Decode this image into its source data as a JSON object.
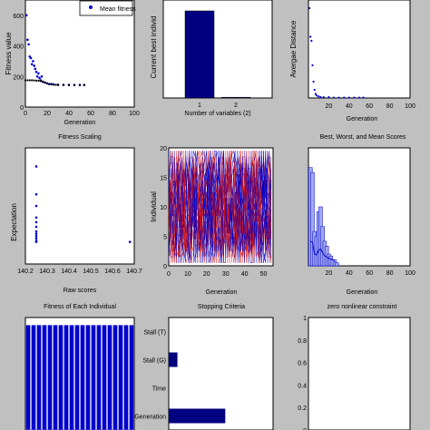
{
  "figure": {
    "background": "#c0c0c0",
    "mark_color": "#0000cc",
    "red_color": "#d01010"
  },
  "chart_data": [
    {
      "id": "p1",
      "type": "scatter",
      "ylabel": "Fitness value",
      "xlabel": "Generation",
      "xlim": [
        0,
        100
      ],
      "ylim": [
        0,
        700
      ],
      "xticks": [
        "0",
        "20",
        "40",
        "60",
        "80",
        "100"
      ],
      "yticks": [
        "0",
        "200",
        "400",
        "600"
      ],
      "legend": {
        "label": "Mean fitness",
        "placement": "top-right"
      },
      "series": [
        {
          "name": "Mean fitness",
          "color": "#0000cc",
          "points": [
            [
              1,
              600
            ],
            [
              2,
              440
            ],
            [
              3,
              410
            ],
            [
              4,
              330
            ],
            [
              5,
              320
            ],
            [
              6,
              280
            ],
            [
              7,
              300
            ],
            [
              8,
              270
            ],
            [
              9,
              250
            ],
            [
              10,
              230
            ],
            [
              11,
              200
            ],
            [
              12,
              220
            ],
            [
              13,
              190
            ],
            [
              14,
              175
            ],
            [
              15,
              200
            ],
            [
              16,
              165
            ],
            [
              18,
              160
            ],
            [
              20,
              155
            ],
            [
              22,
              150
            ],
            [
              24,
              150
            ],
            [
              26,
              148
            ],
            [
              30,
              146
            ],
            [
              35,
              145
            ],
            [
              40,
              145
            ],
            [
              45,
              144
            ],
            [
              50,
              144
            ],
            [
              54,
              144
            ]
          ]
        },
        {
          "name": "",
          "color": "#000000",
          "points": [
            [
              0,
              175
            ],
            [
              2,
              175
            ],
            [
              4,
              175
            ],
            [
              6,
              175
            ],
            [
              8,
              174
            ],
            [
              10,
              173
            ],
            [
              12,
              172
            ],
            [
              14,
              170
            ],
            [
              16,
              168
            ],
            [
              18,
              160
            ],
            [
              20,
              155
            ],
            [
              22,
              150
            ],
            [
              24,
              148
            ],
            [
              26,
              146
            ],
            [
              28,
              145
            ],
            [
              30,
              144
            ],
            [
              35,
              144
            ],
            [
              40,
              143
            ],
            [
              45,
              143
            ],
            [
              50,
              143
            ],
            [
              54,
              143
            ]
          ]
        }
      ]
    },
    {
      "id": "p2",
      "type": "bar",
      "ylabel": "Current best individ",
      "xlabel": "Number of variables (2)",
      "xlim": [
        0,
        3
      ],
      "ylim": [
        0,
        135
      ],
      "xticks": [
        "1",
        "2"
      ],
      "categories": [
        "1",
        "2"
      ],
      "values": [
        120,
        1
      ]
    },
    {
      "id": "p3",
      "type": "scatter",
      "ylabel": "Avergae Distance",
      "xlabel": "Generation",
      "title_below": "Best, Worst, and Mean Scores",
      "xlim": [
        0,
        100
      ],
      "ylim": [
        0,
        120
      ],
      "xticks": [
        "20",
        "40",
        "60",
        "80",
        "100"
      ],
      "yticks": [
        "0",
        "20",
        "40",
        "60",
        "80",
        "100"
      ],
      "series": [
        {
          "name": "",
          "color": "#0000cc",
          "points": [
            [
              1,
              110
            ],
            [
              2,
              75
            ],
            [
              3,
              70
            ],
            [
              4,
              40
            ],
            [
              5,
              20
            ],
            [
              6,
              10
            ],
            [
              7,
              5
            ],
            [
              8,
              3
            ],
            [
              10,
              2
            ],
            [
              12,
              1
            ],
            [
              15,
              1
            ],
            [
              20,
              1
            ],
            [
              25,
              0.5
            ],
            [
              30,
              0.5
            ],
            [
              35,
              0.5
            ],
            [
              40,
              0.5
            ],
            [
              45,
              0.5
            ],
            [
              50,
              0.5
            ],
            [
              54,
              0.5
            ]
          ]
        }
      ]
    },
    {
      "id": "p4",
      "type": "scatter",
      "title_top": "Fitness Scaling",
      "ylabel": "Expectation",
      "xlabel": "Raw scores",
      "xlim": [
        140.2,
        140.7
      ],
      "ylim": [
        0,
        5
      ],
      "xticks": [
        "140.2",
        "140.3",
        "140.4",
        "140.5",
        "140.6",
        "140.7"
      ],
      "yticks": [
        "0",
        "1",
        "2",
        "3",
        "4",
        "5"
      ],
      "series": [
        {
          "name": "",
          "color": "#0000cc",
          "points": [
            [
              140.25,
              4.2
            ],
            [
              140.25,
              3.0
            ],
            [
              140.25,
              2.5
            ],
            [
              140.25,
              2.0
            ],
            [
              140.25,
              1.8
            ],
            [
              140.25,
              1.6
            ],
            [
              140.25,
              1.4
            ],
            [
              140.25,
              1.3
            ],
            [
              140.25,
              1.2
            ],
            [
              140.25,
              1.1
            ],
            [
              140.25,
              1.0
            ],
            [
              140.25,
              0.95
            ],
            [
              140.68,
              0.95
            ]
          ]
        }
      ]
    },
    {
      "id": "p5",
      "type": "scatter",
      "ylabel": "Individual",
      "xlabel": "Generation",
      "xlim": [
        0,
        55
      ],
      "ylim": [
        0,
        20
      ],
      "xticks": [
        "0",
        "10",
        "20",
        "30",
        "40",
        "50"
      ],
      "yticks": [
        "0",
        "5",
        "10",
        "15",
        "20"
      ],
      "description": "dense genealogy lines, red and blue"
    },
    {
      "id": "p6",
      "type": "bar",
      "title_below": "zero nonlinear constraint",
      "xlabel": "Generation",
      "xlim": [
        0,
        100
      ],
      "ylim": [
        0,
        120
      ],
      "xticks": [
        "20",
        "40",
        "60",
        "80",
        "100"
      ],
      "categories": [
        "2",
        "4",
        "6",
        "8",
        "10",
        "12",
        "14",
        "16",
        "18",
        "20",
        "22",
        "24",
        "26",
        "28"
      ],
      "values": [
        100,
        95,
        35,
        30,
        55,
        60,
        40,
        25,
        20,
        12,
        10,
        6,
        4,
        3
      ]
    },
    {
      "id": "p7",
      "type": "bar",
      "title_top": "Fitness of Each Individual",
      "xlim": [
        0,
        20
      ],
      "ylim": [
        0,
        150
      ],
      "values": [
        140,
        140,
        140,
        140,
        140,
        140,
        140,
        140,
        140,
        140,
        140,
        140,
        140,
        140,
        140,
        140,
        140,
        140,
        140,
        140
      ]
    },
    {
      "id": "p8",
      "type": "bar",
      "title_top": "Stopping Criteria",
      "orientation": "horizontal",
      "categories": [
        "Generation",
        "Time",
        "Stall (G)",
        "Stall (T)"
      ],
      "values": [
        0.65,
        0,
        0.1,
        0
      ],
      "xlim": [
        0,
        1.2
      ]
    },
    {
      "id": "p9",
      "type": "line",
      "xlim": [
        0,
        1
      ],
      "ylim": [
        0,
        1
      ],
      "yticks": [
        "0",
        "0.2",
        "0.4",
        "0.6",
        "0.8",
        "1"
      ],
      "series": []
    }
  ]
}
